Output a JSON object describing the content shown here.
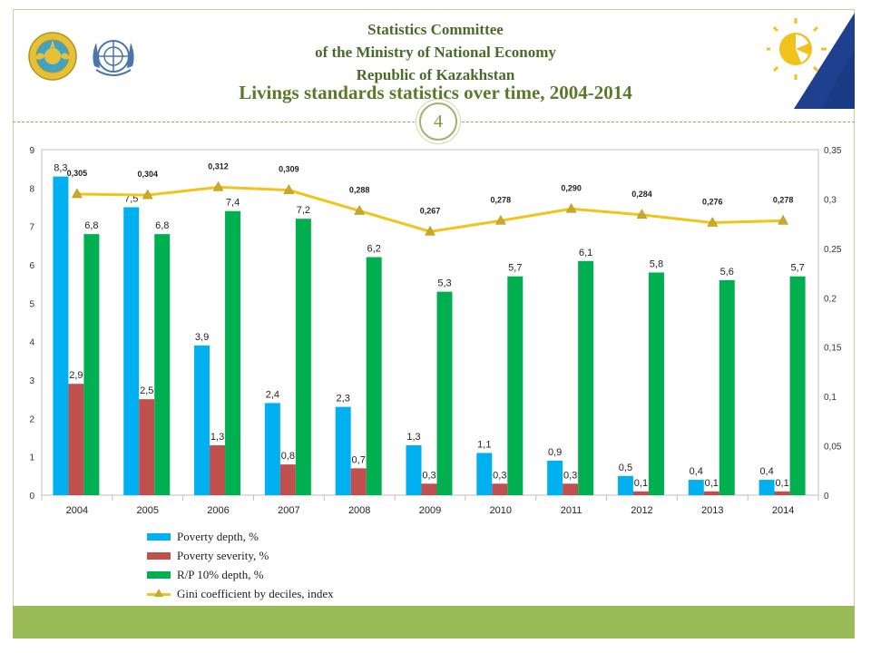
{
  "header": {
    "org_line1": "Statistics Committee",
    "org_line2": "of the Ministry of National Economy",
    "org_line3": "Republic of Kazakhstan",
    "title": "Livings standards statistics over time, 2004-2014",
    "page_number": "4"
  },
  "logos": [
    "kazakhstan-emblem",
    "un-emblem",
    "statistics-committee-logo"
  ],
  "colors": {
    "poverty_depth": "#00b0f0",
    "poverty_severity": "#c0504d",
    "rp_depth": "#00b050",
    "gini": "#f0c419",
    "accent": "#9bbb59"
  },
  "chart_data": {
    "type": "bar",
    "categories": [
      "2004",
      "2005",
      "2006",
      "2007",
      "2008",
      "2009",
      "2010",
      "2011",
      "2012",
      "2013",
      "2014"
    ],
    "series": [
      {
        "name": "Poverty depth, %",
        "type": "bar",
        "axis": "left",
        "values": [
          8.3,
          7.5,
          3.9,
          2.4,
          2.3,
          1.3,
          1.1,
          0.9,
          0.5,
          0.4,
          0.4
        ],
        "labels": [
          "8,3",
          "7,5",
          "3,9",
          "2,4",
          "2,3",
          "1,3",
          "1,1",
          "0,9",
          "0,5",
          "0,4",
          "0,4"
        ]
      },
      {
        "name": "Poverty severity, %",
        "type": "bar",
        "axis": "left",
        "values": [
          2.9,
          2.5,
          1.3,
          0.8,
          0.7,
          0.3,
          0.3,
          0.3,
          0.1,
          0.1,
          0.1
        ],
        "labels": [
          "2,9",
          "2,5",
          "1,3",
          "0,8",
          "0,7",
          "0,3",
          "0,3",
          "0,3",
          "0,1",
          "0,1",
          "0,1"
        ]
      },
      {
        "name": "R/P 10% depth, %",
        "type": "bar",
        "axis": "left",
        "values": [
          6.8,
          6.8,
          7.4,
          7.2,
          6.2,
          5.3,
          5.7,
          6.1,
          5.8,
          5.6,
          5.7
        ],
        "labels": [
          "6,8",
          "6,8",
          "7,4",
          "7,2",
          "6,2",
          "5,3",
          "5,7",
          "6,1",
          "5,8",
          "5,6",
          "5,7"
        ]
      },
      {
        "name": "Gini coefficient by deciles, index",
        "type": "line",
        "axis": "right",
        "values": [
          0.305,
          0.304,
          0.312,
          0.309,
          0.288,
          0.267,
          0.278,
          0.29,
          0.284,
          0.276,
          0.278
        ],
        "labels": [
          "0,305",
          "0,304",
          "0,312",
          "0,309",
          "0,288",
          "0,267",
          "0,278",
          "0,290",
          "0,284",
          "0,276",
          "0,278"
        ]
      }
    ],
    "y_left": {
      "min": 0,
      "max": 9,
      "ticks": [
        "0",
        "1",
        "2",
        "3",
        "4",
        "5",
        "6",
        "7",
        "8",
        "9"
      ]
    },
    "y_right": {
      "min": 0,
      "max": 0.35,
      "ticks": [
        "0",
        "0,05",
        "0,1",
        "0,15",
        "0,2",
        "0,25",
        "0,3",
        "0,35"
      ]
    },
    "legend_position": "bottom-left"
  }
}
